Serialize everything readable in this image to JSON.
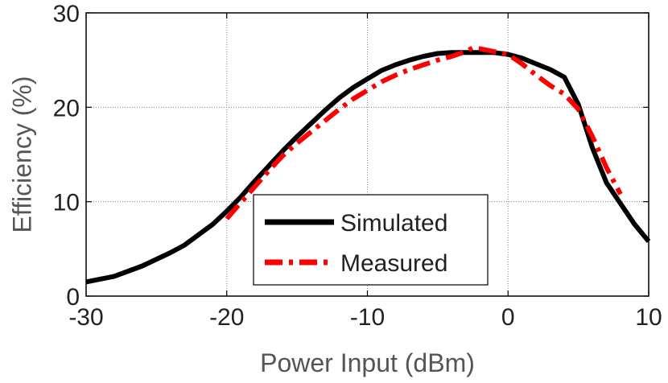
{
  "chart_data": {
    "type": "line",
    "xlabel": "Power Input (dBm)",
    "ylabel": "Efficiency (%)",
    "xlim": [
      -30,
      10
    ],
    "ylim": [
      0,
      30
    ],
    "xticks": [
      -30,
      -20,
      -10,
      0,
      10
    ],
    "yticks": [
      0,
      10,
      20,
      30
    ],
    "xtick_labels": [
      "-30",
      "-20",
      "-10",
      "0",
      "10"
    ],
    "ytick_labels": [
      "0",
      "10",
      "20",
      "30"
    ],
    "grid": true,
    "legend_position": "bottom-center",
    "series": [
      {
        "name": "Simulated",
        "color": "#000000",
        "style": "solid",
        "x": [
          -30,
          -28,
          -26,
          -24,
          -23,
          -22,
          -21,
          -20,
          -19,
          -18,
          -17,
          -16,
          -15,
          -14,
          -13,
          -12,
          -11,
          -10,
          -9,
          -8,
          -7,
          -6,
          -5,
          -4,
          -3,
          -2,
          -1,
          0,
          1,
          2,
          3,
          4,
          5,
          6,
          7,
          8,
          9,
          10
        ],
        "y": [
          1.5,
          2.1,
          3.2,
          4.6,
          5.4,
          6.5,
          7.6,
          9.0,
          10.5,
          12.2,
          13.8,
          15.4,
          16.9,
          18.3,
          19.7,
          21.0,
          22.1,
          23.0,
          23.9,
          24.5,
          25.0,
          25.4,
          25.7,
          25.8,
          25.8,
          25.8,
          25.8,
          25.6,
          25.2,
          24.6,
          24.0,
          23.2,
          20.3,
          15.7,
          12.0,
          9.8,
          7.6,
          5.8
        ]
      },
      {
        "name": "Measured",
        "color": "#ff0000",
        "style": "dash-dot",
        "x": [
          -20,
          -19,
          -18,
          -17,
          -16,
          -15,
          -14,
          -13,
          -12,
          -11,
          -10,
          -9,
          -8,
          -7,
          -6,
          -5,
          -4,
          -3,
          -2.5,
          -2,
          -1,
          0,
          1,
          2,
          3,
          4,
          5,
          6,
          7,
          8
        ],
        "y": [
          8.2,
          9.9,
          11.6,
          13.3,
          14.9,
          16.2,
          17.4,
          18.6,
          19.8,
          20.9,
          21.8,
          22.7,
          23.4,
          24.0,
          24.5,
          25.0,
          25.4,
          25.9,
          26.3,
          26.2,
          25.9,
          25.6,
          24.6,
          23.4,
          22.3,
          21.4,
          19.8,
          16.9,
          13.6,
          10.8
        ]
      }
    ]
  }
}
